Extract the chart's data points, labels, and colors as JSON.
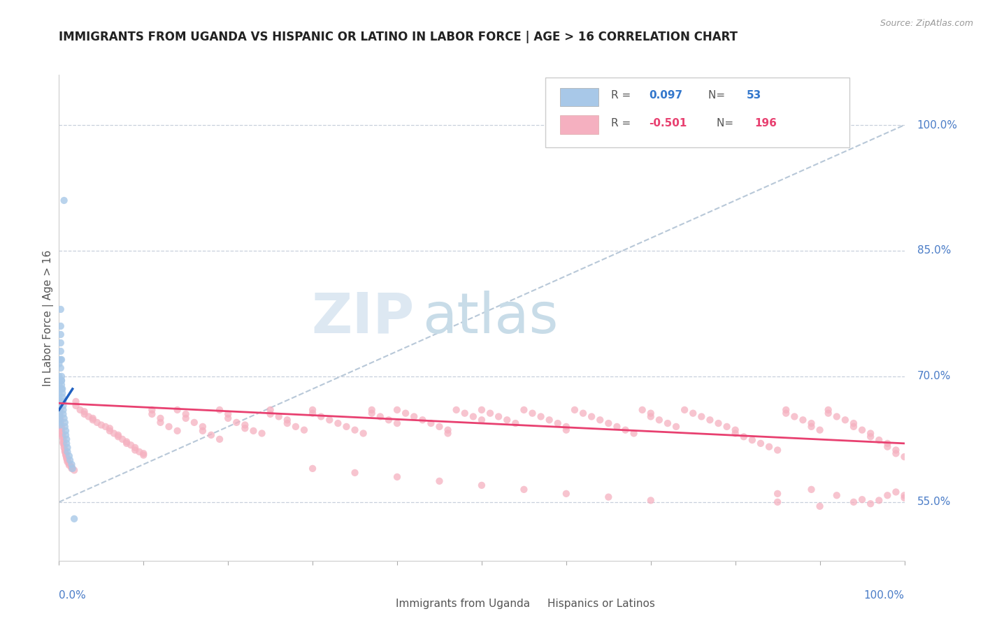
{
  "title": "IMMIGRANTS FROM UGANDA VS HISPANIC OR LATINO IN LABOR FORCE | AGE > 16 CORRELATION CHART",
  "source_text": "Source: ZipAtlas.com",
  "ylabel": "In Labor Force | Age > 16",
  "y_tick_labels": [
    "55.0%",
    "70.0%",
    "85.0%",
    "100.0%"
  ],
  "y_tick_values": [
    0.55,
    0.7,
    0.85,
    1.0
  ],
  "x_range": [
    0.0,
    1.0
  ],
  "y_range": [
    0.48,
    1.06
  ],
  "legend_blue_R": "0.097",
  "legend_blue_N": "53",
  "legend_pink_R": "-0.501",
  "legend_pink_N": "196",
  "legend_label_blue": "Immigrants from Uganda",
  "legend_label_pink": "Hispanics or Latinos",
  "watermark_zip": "ZIP",
  "watermark_atlas": "atlas",
  "blue_color": "#a8c8e8",
  "pink_color": "#f5b0c0",
  "trend_blue_color": "#2060c0",
  "trend_pink_color": "#e84070",
  "ref_line_color": "#b8c8d8",
  "grid_color": "#c8d0dc",
  "blue_scatter": [
    [
      0.0,
      0.72
    ],
    [
      0.0,
      0.715
    ],
    [
      0.0,
      0.7
    ],
    [
      0.0,
      0.695
    ],
    [
      0.0,
      0.69
    ],
    [
      0.0,
      0.685
    ],
    [
      0.0,
      0.68
    ],
    [
      0.0,
      0.675
    ],
    [
      0.0,
      0.672
    ],
    [
      0.001,
      0.668
    ],
    [
      0.001,
      0.665
    ],
    [
      0.001,
      0.662
    ],
    [
      0.001,
      0.658
    ],
    [
      0.001,
      0.655
    ],
    [
      0.001,
      0.652
    ],
    [
      0.001,
      0.648
    ],
    [
      0.001,
      0.645
    ],
    [
      0.001,
      0.642
    ],
    [
      0.002,
      0.78
    ],
    [
      0.002,
      0.76
    ],
    [
      0.002,
      0.75
    ],
    [
      0.002,
      0.74
    ],
    [
      0.002,
      0.73
    ],
    [
      0.002,
      0.72
    ],
    [
      0.002,
      0.71
    ],
    [
      0.003,
      0.7
    ],
    [
      0.003,
      0.695
    ],
    [
      0.003,
      0.69
    ],
    [
      0.003,
      0.685
    ],
    [
      0.003,
      0.72
    ],
    [
      0.004,
      0.685
    ],
    [
      0.004,
      0.68
    ],
    [
      0.004,
      0.675
    ],
    [
      0.005,
      0.67
    ],
    [
      0.005,
      0.665
    ],
    [
      0.005,
      0.66
    ],
    [
      0.005,
      0.655
    ],
    [
      0.006,
      0.91
    ],
    [
      0.006,
      0.65
    ],
    [
      0.007,
      0.645
    ],
    [
      0.007,
      0.64
    ],
    [
      0.008,
      0.635
    ],
    [
      0.008,
      0.63
    ],
    [
      0.009,
      0.625
    ],
    [
      0.009,
      0.62
    ],
    [
      0.01,
      0.615
    ],
    [
      0.01,
      0.61
    ],
    [
      0.012,
      0.605
    ],
    [
      0.013,
      0.6
    ],
    [
      0.015,
      0.595
    ],
    [
      0.016,
      0.59
    ],
    [
      0.018,
      0.53
    ],
    [
      0.003,
      0.695
    ]
  ],
  "pink_scatter": [
    [
      0.0,
      0.67
    ],
    [
      0.0,
      0.665
    ],
    [
      0.001,
      0.66
    ],
    [
      0.001,
      0.655
    ],
    [
      0.001,
      0.65
    ],
    [
      0.002,
      0.648
    ],
    [
      0.002,
      0.645
    ],
    [
      0.002,
      0.642
    ],
    [
      0.003,
      0.64
    ],
    [
      0.003,
      0.638
    ],
    [
      0.003,
      0.635
    ],
    [
      0.004,
      0.632
    ],
    [
      0.004,
      0.63
    ],
    [
      0.004,
      0.628
    ],
    [
      0.005,
      0.625
    ],
    [
      0.005,
      0.622
    ],
    [
      0.005,
      0.62
    ],
    [
      0.006,
      0.618
    ],
    [
      0.006,
      0.615
    ],
    [
      0.007,
      0.612
    ],
    [
      0.007,
      0.61
    ],
    [
      0.008,
      0.608
    ],
    [
      0.008,
      0.606
    ],
    [
      0.009,
      0.604
    ],
    [
      0.009,
      0.602
    ],
    [
      0.01,
      0.6
    ],
    [
      0.01,
      0.598
    ],
    [
      0.012,
      0.596
    ],
    [
      0.012,
      0.594
    ],
    [
      0.015,
      0.592
    ],
    [
      0.015,
      0.59
    ],
    [
      0.018,
      0.588
    ],
    [
      0.02,
      0.67
    ],
    [
      0.02,
      0.665
    ],
    [
      0.025,
      0.66
    ],
    [
      0.03,
      0.658
    ],
    [
      0.03,
      0.655
    ],
    [
      0.035,
      0.652
    ],
    [
      0.04,
      0.65
    ],
    [
      0.04,
      0.648
    ],
    [
      0.045,
      0.645
    ],
    [
      0.05,
      0.642
    ],
    [
      0.055,
      0.64
    ],
    [
      0.06,
      0.638
    ],
    [
      0.06,
      0.635
    ],
    [
      0.065,
      0.632
    ],
    [
      0.07,
      0.63
    ],
    [
      0.07,
      0.628
    ],
    [
      0.075,
      0.625
    ],
    [
      0.08,
      0.622
    ],
    [
      0.08,
      0.62
    ],
    [
      0.085,
      0.618
    ],
    [
      0.09,
      0.615
    ],
    [
      0.09,
      0.612
    ],
    [
      0.095,
      0.61
    ],
    [
      0.1,
      0.608
    ],
    [
      0.1,
      0.606
    ],
    [
      0.11,
      0.66
    ],
    [
      0.11,
      0.655
    ],
    [
      0.12,
      0.65
    ],
    [
      0.12,
      0.645
    ],
    [
      0.13,
      0.64
    ],
    [
      0.14,
      0.635
    ],
    [
      0.14,
      0.66
    ],
    [
      0.15,
      0.655
    ],
    [
      0.15,
      0.65
    ],
    [
      0.16,
      0.645
    ],
    [
      0.17,
      0.64
    ],
    [
      0.17,
      0.635
    ],
    [
      0.18,
      0.63
    ],
    [
      0.19,
      0.625
    ],
    [
      0.19,
      0.66
    ],
    [
      0.2,
      0.655
    ],
    [
      0.2,
      0.65
    ],
    [
      0.21,
      0.645
    ],
    [
      0.22,
      0.642
    ],
    [
      0.22,
      0.638
    ],
    [
      0.23,
      0.635
    ],
    [
      0.24,
      0.632
    ],
    [
      0.25,
      0.66
    ],
    [
      0.25,
      0.655
    ],
    [
      0.26,
      0.652
    ],
    [
      0.27,
      0.648
    ],
    [
      0.27,
      0.644
    ],
    [
      0.28,
      0.64
    ],
    [
      0.29,
      0.636
    ],
    [
      0.3,
      0.66
    ],
    [
      0.3,
      0.656
    ],
    [
      0.31,
      0.652
    ],
    [
      0.32,
      0.648
    ],
    [
      0.33,
      0.644
    ],
    [
      0.34,
      0.64
    ],
    [
      0.35,
      0.636
    ],
    [
      0.36,
      0.632
    ],
    [
      0.37,
      0.66
    ],
    [
      0.37,
      0.656
    ],
    [
      0.38,
      0.652
    ],
    [
      0.39,
      0.648
    ],
    [
      0.4,
      0.644
    ],
    [
      0.4,
      0.66
    ],
    [
      0.41,
      0.656
    ],
    [
      0.42,
      0.652
    ],
    [
      0.43,
      0.648
    ],
    [
      0.44,
      0.644
    ],
    [
      0.45,
      0.64
    ],
    [
      0.46,
      0.636
    ],
    [
      0.46,
      0.632
    ],
    [
      0.47,
      0.66
    ],
    [
      0.48,
      0.656
    ],
    [
      0.49,
      0.652
    ],
    [
      0.5,
      0.648
    ],
    [
      0.5,
      0.66
    ],
    [
      0.51,
      0.656
    ],
    [
      0.52,
      0.652
    ],
    [
      0.53,
      0.648
    ],
    [
      0.54,
      0.644
    ],
    [
      0.55,
      0.66
    ],
    [
      0.56,
      0.656
    ],
    [
      0.57,
      0.652
    ],
    [
      0.58,
      0.648
    ],
    [
      0.59,
      0.644
    ],
    [
      0.6,
      0.64
    ],
    [
      0.6,
      0.636
    ],
    [
      0.61,
      0.66
    ],
    [
      0.62,
      0.656
    ],
    [
      0.63,
      0.652
    ],
    [
      0.64,
      0.648
    ],
    [
      0.65,
      0.644
    ],
    [
      0.66,
      0.64
    ],
    [
      0.67,
      0.636
    ],
    [
      0.68,
      0.632
    ],
    [
      0.69,
      0.66
    ],
    [
      0.7,
      0.656
    ],
    [
      0.7,
      0.652
    ],
    [
      0.71,
      0.648
    ],
    [
      0.72,
      0.644
    ],
    [
      0.73,
      0.64
    ],
    [
      0.74,
      0.66
    ],
    [
      0.75,
      0.656
    ],
    [
      0.76,
      0.652
    ],
    [
      0.77,
      0.648
    ],
    [
      0.78,
      0.644
    ],
    [
      0.79,
      0.64
    ],
    [
      0.8,
      0.636
    ],
    [
      0.8,
      0.632
    ],
    [
      0.81,
      0.628
    ],
    [
      0.82,
      0.624
    ],
    [
      0.83,
      0.62
    ],
    [
      0.84,
      0.616
    ],
    [
      0.85,
      0.612
    ],
    [
      0.86,
      0.66
    ],
    [
      0.86,
      0.656
    ],
    [
      0.87,
      0.652
    ],
    [
      0.88,
      0.648
    ],
    [
      0.89,
      0.644
    ],
    [
      0.89,
      0.64
    ],
    [
      0.9,
      0.636
    ],
    [
      0.91,
      0.66
    ],
    [
      0.91,
      0.656
    ],
    [
      0.92,
      0.652
    ],
    [
      0.93,
      0.648
    ],
    [
      0.94,
      0.644
    ],
    [
      0.94,
      0.64
    ],
    [
      0.95,
      0.636
    ],
    [
      0.96,
      0.632
    ],
    [
      0.96,
      0.628
    ],
    [
      0.97,
      0.624
    ],
    [
      0.98,
      0.62
    ],
    [
      0.98,
      0.616
    ],
    [
      0.99,
      0.612
    ],
    [
      0.99,
      0.608
    ],
    [
      1.0,
      0.604
    ],
    [
      0.85,
      0.55
    ],
    [
      0.9,
      0.545
    ],
    [
      0.94,
      0.55
    ],
    [
      0.96,
      0.548
    ],
    [
      0.97,
      0.552
    ],
    [
      0.98,
      0.558
    ],
    [
      0.99,
      0.562
    ],
    [
      1.0,
      0.558
    ],
    [
      1.0,
      0.555
    ],
    [
      0.85,
      0.56
    ],
    [
      0.89,
      0.565
    ],
    [
      0.92,
      0.558
    ],
    [
      0.95,
      0.553
    ],
    [
      0.3,
      0.59
    ],
    [
      0.35,
      0.585
    ],
    [
      0.4,
      0.58
    ],
    [
      0.45,
      0.575
    ],
    [
      0.5,
      0.57
    ],
    [
      0.55,
      0.565
    ],
    [
      0.6,
      0.56
    ],
    [
      0.65,
      0.556
    ],
    [
      0.7,
      0.552
    ]
  ],
  "blue_trend_x": [
    0.0,
    0.016
  ],
  "blue_trend_y": [
    0.66,
    0.685
  ],
  "pink_trend_x": [
    0.0,
    1.0
  ],
  "pink_trend_y": [
    0.668,
    0.62
  ],
  "ref_line_x": [
    0.0,
    1.0
  ],
  "ref_line_y": [
    0.55,
    1.0
  ]
}
